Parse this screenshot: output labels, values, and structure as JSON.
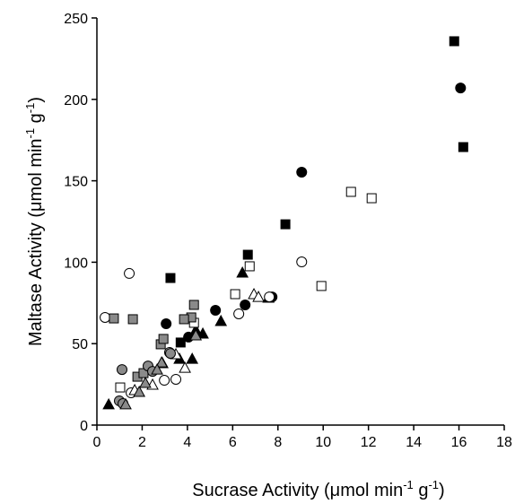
{
  "chart_data": {
    "type": "scatter",
    "x_label": [
      "Sucrase Activity (μmol min",
      "-1",
      " g",
      "-1",
      ")"
    ],
    "y_label": [
      "Maltase Activity (μmol min",
      "-1",
      " g",
      "-1",
      ")"
    ],
    "xlim": [
      0,
      18
    ],
    "ylim": [
      0,
      250
    ],
    "xticks": [
      0,
      2,
      4,
      6,
      8,
      10,
      12,
      14,
      16,
      18
    ],
    "yticks": [
      0,
      50,
      100,
      150,
      200,
      250
    ],
    "series": [
      {
        "marker": "square",
        "color": "#000000",
        "x": [
          15.79,
          16.19,
          8.33,
          6.67,
          3.25,
          3.7
        ],
        "values": [
          235.7,
          170.7,
          123.3,
          104.6,
          90.3,
          50.7
        ]
      },
      {
        "marker": "circle",
        "color": "#000000",
        "x": [
          16.07,
          9.05,
          3.06,
          5.24,
          6.55,
          7.74,
          4.05
        ],
        "values": [
          207,
          155.3,
          62.2,
          70.5,
          73.8,
          78.7,
          54
        ]
      },
      {
        "marker": "triangle",
        "color": "#000000",
        "x": [
          7.58,
          6.43,
          5.48,
          4.68,
          4.21,
          3.65,
          4.37,
          0.52
        ],
        "values": [
          78.2,
          93.6,
          63.9,
          56.2,
          40.7,
          40.7,
          58.4,
          12.7
        ]
      },
      {
        "marker": "square",
        "color": "#ffffff",
        "x": [
          11.23,
          12.14,
          9.92,
          6.75,
          6.11,
          4.29,
          1.03
        ],
        "values": [
          143.2,
          139.3,
          85.4,
          97.5,
          80.4,
          62.8,
          23.1
        ]
      },
      {
        "marker": "circle",
        "color": "#ffffff",
        "x": [
          0.36,
          1.43,
          9.05,
          6.27,
          7.62,
          3.49,
          2.98,
          1.51,
          3.21
        ],
        "values": [
          66.1,
          93.1,
          100.2,
          68.3,
          78.7,
          28.1,
          27.5,
          19.8,
          44.6
        ]
      },
      {
        "marker": "triangle",
        "color": "#ffffff",
        "x": [
          6.94,
          7.14,
          3.89,
          2.46,
          1.67,
          3.49,
          2.9
        ],
        "values": [
          80.4,
          78.7,
          35.2,
          24.8,
          21.5,
          43.5,
          38
        ]
      },
      {
        "marker": "square",
        "color": "#8a8a8a",
        "x": [
          0.75,
          1.59,
          4.29,
          4.17,
          3.85,
          2.82,
          2.94,
          1.79,
          2.06
        ],
        "values": [
          65.5,
          65,
          73.8,
          66.1,
          65,
          49.6,
          52.9,
          29.7,
          31.9
        ]
      },
      {
        "marker": "circle",
        "color": "#8a8a8a",
        "x": [
          1.11,
          2.26,
          2.46,
          3.25,
          0.99,
          1.15
        ],
        "values": [
          34.1,
          36.3,
          33,
          44,
          14.9,
          13.2
        ]
      },
      {
        "marker": "triangle",
        "color": "#8a8a8a",
        "x": [
          1.27,
          1.87,
          2.14,
          2.86,
          2.66,
          4.37
        ],
        "values": [
          12.7,
          20.4,
          25.9,
          38.5,
          34.1,
          55.1
        ]
      }
    ]
  }
}
